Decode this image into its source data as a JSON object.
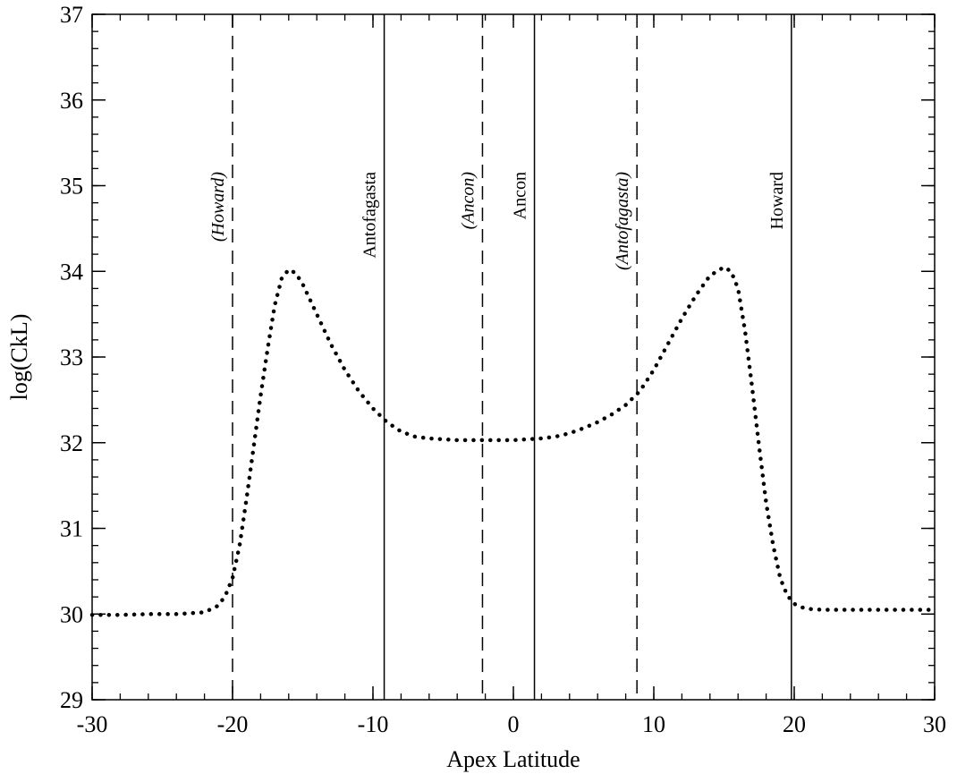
{
  "chart_data": {
    "type": "line",
    "title": "",
    "xlabel": "Apex Latitude",
    "ylabel": "log(CkL)",
    "xlim": [
      -30,
      30
    ],
    "ylim": [
      29,
      37
    ],
    "x_ticks": [
      -30,
      -20,
      -10,
      0,
      10,
      20,
      30
    ],
    "y_ticks": [
      29,
      30,
      31,
      32,
      33,
      34,
      35,
      36,
      37
    ],
    "x_minor_step": 2,
    "y_minor_step": 0.2,
    "grid": false,
    "line_color": "#000000",
    "series": [
      {
        "style": "dotted",
        "x": [
          -30,
          -28,
          -26,
          -24,
          -22,
          -21,
          -20.5,
          -20,
          -19.5,
          -19,
          -18.5,
          -18,
          -17.5,
          -17,
          -16.5,
          -16,
          -15.5,
          -15,
          -14,
          -13,
          -12,
          -11,
          -10,
          -9,
          -8,
          -7,
          -6,
          -5,
          -4,
          -3,
          -2,
          -1,
          0,
          1,
          2,
          3,
          4,
          5,
          6,
          7,
          8,
          9,
          10,
          11,
          12,
          13,
          14,
          15,
          15.5,
          16,
          16.5,
          17,
          17.5,
          18,
          18.5,
          19,
          19.5,
          20,
          20.5,
          21,
          22,
          24,
          26,
          28,
          30
        ],
        "y": [
          29.99,
          29.99,
          30.0,
          30.0,
          30.02,
          30.1,
          30.22,
          30.42,
          30.8,
          31.35,
          31.95,
          32.55,
          33.1,
          33.6,
          33.92,
          34.02,
          33.98,
          33.85,
          33.5,
          33.15,
          32.85,
          32.6,
          32.4,
          32.24,
          32.13,
          32.07,
          32.05,
          32.04,
          32.03,
          32.03,
          32.03,
          32.03,
          32.03,
          32.04,
          32.05,
          32.07,
          32.11,
          32.17,
          32.24,
          32.33,
          32.44,
          32.6,
          32.85,
          33.15,
          33.45,
          33.72,
          33.95,
          34.05,
          34.0,
          33.8,
          33.3,
          32.65,
          31.95,
          31.3,
          30.8,
          30.42,
          30.22,
          30.12,
          30.08,
          30.06,
          30.05,
          30.05,
          30.05,
          30.05,
          30.05
        ]
      }
    ],
    "markers": [
      {
        "x": -20,
        "label": "(Howard)",
        "style": "dashed",
        "italic": true
      },
      {
        "x": -9.2,
        "label": "Antofagasta",
        "style": "solid",
        "italic": false
      },
      {
        "x": -2.2,
        "label": "(Ancon)",
        "style": "dashed",
        "italic": true
      },
      {
        "x": 1.5,
        "label": "Ancon",
        "style": "solid",
        "italic": false
      },
      {
        "x": 8.8,
        "label": "(Antofagasta)",
        "style": "dashed",
        "italic": true
      },
      {
        "x": 19.8,
        "label": "Howard",
        "style": "solid",
        "italic": false
      }
    ]
  }
}
